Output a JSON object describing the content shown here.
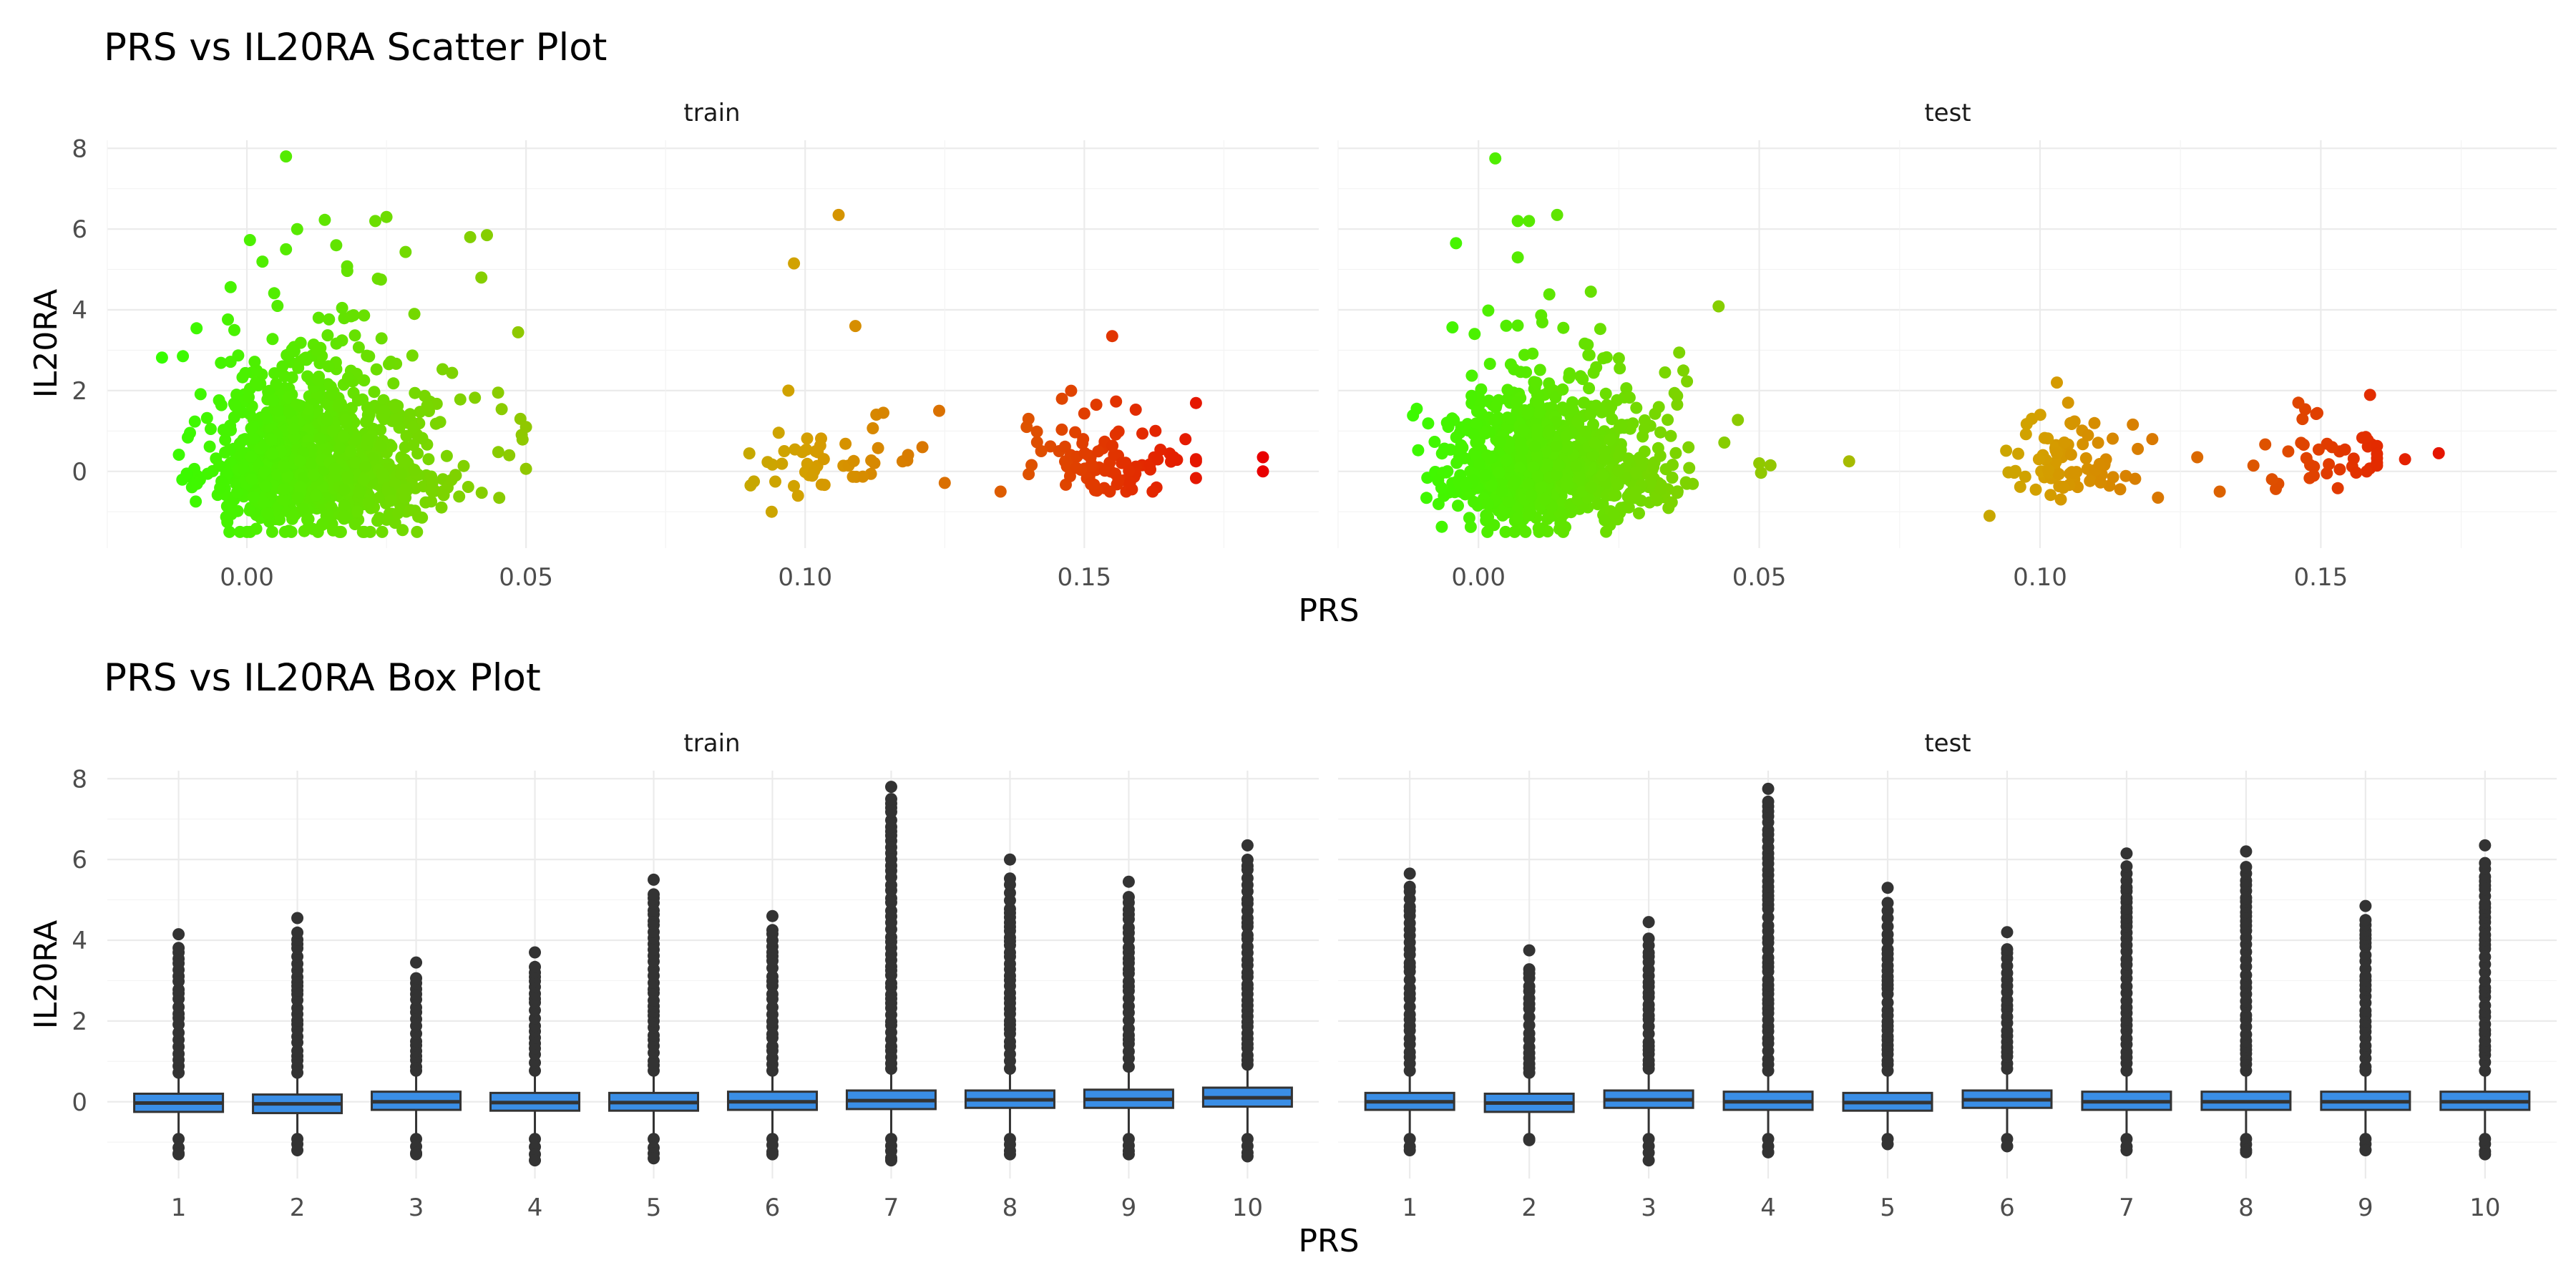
{
  "chart_data": [
    {
      "type": "scatter",
      "title": "PRS vs IL20RA Scatter Plot",
      "xlabel": "PRS",
      "ylabel": "IL20RA",
      "facets": [
        "train",
        "test"
      ],
      "color_scale": {
        "low": "#33ff00",
        "mid": "#d4a000",
        "high": "#e80000"
      },
      "grid": true,
      "panels": [
        {
          "facet": "train",
          "xlim": [
            -0.025,
            0.192
          ],
          "ylim": [
            -1.9,
            8.2
          ],
          "x_ticks": [
            0.0,
            0.05,
            0.1,
            0.15
          ],
          "x_tick_labels": [
            "0.00",
            "0.05",
            "0.10",
            "0.15"
          ],
          "y_ticks": [
            0,
            2,
            4,
            6,
            8
          ],
          "y_tick_labels": [
            "0",
            "2",
            "4",
            "6",
            "8"
          ],
          "clusters": [
            {
              "x_mean": 0.008,
              "x_sd": 0.009,
              "y_mean": 0.15,
              "y_sd": 0.75,
              "x_min": -0.018,
              "x_max": 0.05,
              "y_min": -1.5,
              "count": 1100
            },
            {
              "x_mean": 0.1,
              "x_sd": 0.007,
              "y_mean": 0.0,
              "y_sd": 0.35,
              "x_min": 0.09,
              "x_max": 0.125,
              "y_min": -1.0,
              "count": 45
            },
            {
              "x_mean": 0.15,
              "x_sd": 0.007,
              "y_mean": 0.25,
              "y_sd": 0.4,
              "x_min": 0.135,
              "x_max": 0.17,
              "y_min": -0.5,
              "count": 90
            }
          ],
          "points": [
            {
              "x": 0.007,
              "y": 7.8
            },
            {
              "x": 0.009,
              "y": 6.0
            },
            {
              "x": 0.025,
              "y": 6.3
            },
            {
              "x": 0.023,
              "y": 6.2
            },
            {
              "x": 0.04,
              "y": 5.8
            },
            {
              "x": 0.043,
              "y": 5.85
            },
            {
              "x": 0.016,
              "y": 5.6
            },
            {
              "x": 0.007,
              "y": 5.5
            },
            {
              "x": 0.042,
              "y": 4.8
            },
            {
              "x": 0.03,
              "y": 3.9
            },
            {
              "x": 0.045,
              "y": 1.95
            },
            {
              "x": 0.049,
              "y": 1.3
            },
            {
              "x": 0.05,
              "y": 1.1
            },
            {
              "x": 0.047,
              "y": 0.4
            },
            {
              "x": 0.106,
              "y": 6.35
            },
            {
              "x": 0.098,
              "y": 5.15
            },
            {
              "x": 0.109,
              "y": 3.6
            },
            {
              "x": 0.097,
              "y": 2.0
            },
            {
              "x": 0.124,
              "y": 1.5
            },
            {
              "x": 0.114,
              "y": 1.45
            },
            {
              "x": 0.121,
              "y": 0.6
            },
            {
              "x": 0.094,
              "y": -1.0
            },
            {
              "x": 0.155,
              "y": 3.35
            },
            {
              "x": 0.146,
              "y": 1.8
            },
            {
              "x": 0.14,
              "y": 1.3
            },
            {
              "x": 0.166,
              "y": 0.35
            },
            {
              "x": 0.182,
              "y": 0.35
            },
            {
              "x": 0.182,
              "y": 0.0
            }
          ]
        },
        {
          "facet": "test",
          "xlim": [
            -0.025,
            0.192
          ],
          "ylim": [
            -1.9,
            8.2
          ],
          "x_ticks": [
            0.0,
            0.05,
            0.1,
            0.15
          ],
          "x_tick_labels": [
            "0.00",
            "0.05",
            "0.10",
            "0.15"
          ],
          "y_ticks": [
            0,
            2,
            4,
            6,
            8
          ],
          "y_tick_labels": [
            "0",
            "2",
            "4",
            "6",
            "8"
          ],
          "clusters": [
            {
              "x_mean": 0.008,
              "x_sd": 0.009,
              "y_mean": 0.1,
              "y_sd": 0.65,
              "x_min": -0.015,
              "x_max": 0.055,
              "y_min": -1.5,
              "count": 900
            },
            {
              "x_mean": 0.103,
              "x_sd": 0.005,
              "y_mean": 0.0,
              "y_sd": 0.3,
              "x_min": 0.09,
              "x_max": 0.121,
              "y_min": -1.1,
              "count": 80
            },
            {
              "x_mean": 0.148,
              "x_sd": 0.006,
              "y_mean": 0.2,
              "y_sd": 0.3,
              "x_min": 0.138,
              "x_max": 0.16,
              "y_min": -0.5,
              "count": 40
            }
          ],
          "points": [
            {
              "x": 0.003,
              "y": 7.75
            },
            {
              "x": 0.014,
              "y": 6.35
            },
            {
              "x": 0.009,
              "y": 6.2
            },
            {
              "x": 0.007,
              "y": 6.2
            },
            {
              "x": -0.004,
              "y": 5.65
            },
            {
              "x": 0.007,
              "y": 5.3
            },
            {
              "x": 0.02,
              "y": 4.45
            },
            {
              "x": 0.025,
              "y": 2.8
            },
            {
              "x": -0.011,
              "y": 1.55
            },
            {
              "x": 0.05,
              "y": 0.2
            },
            {
              "x": 0.052,
              "y": 0.15
            },
            {
              "x": 0.066,
              "y": 0.25
            },
            {
              "x": 0.103,
              "y": 2.2
            },
            {
              "x": 0.105,
              "y": 1.7
            },
            {
              "x": 0.12,
              "y": 0.8
            },
            {
              "x": 0.128,
              "y": 0.35
            },
            {
              "x": 0.132,
              "y": -0.5
            },
            {
              "x": 0.091,
              "y": -1.1
            },
            {
              "x": 0.146,
              "y": 1.7
            },
            {
              "x": 0.158,
              "y": 0.85
            },
            {
              "x": 0.165,
              "y": 0.3
            },
            {
              "x": 0.171,
              "y": 0.45
            },
            {
              "x": 0.152,
              "y": 0.6
            }
          ]
        }
      ]
    },
    {
      "type": "box",
      "title": "PRS vs IL20RA Box Plot",
      "xlabel": "PRS",
      "ylabel": "IL20RA",
      "facets": [
        "train",
        "test"
      ],
      "box_fill": "#3a8ee6",
      "grid": true,
      "categories": [
        "1",
        "2",
        "3",
        "4",
        "5",
        "6",
        "7",
        "8",
        "9",
        "10"
      ],
      "panels": [
        {
          "facet": "train",
          "ylim": [
            -1.9,
            8.2
          ],
          "y_ticks": [
            0,
            2,
            4,
            6,
            8
          ],
          "y_tick_labels": [
            "0",
            "2",
            "4",
            "6",
            "8"
          ],
          "boxes": [
            {
              "q1": -0.25,
              "median": -0.03,
              "q3": 0.2,
              "lower": -0.8,
              "upper": 0.6,
              "outlier_max": 4.15,
              "outlier_min": -1.3
            },
            {
              "q1": -0.28,
              "median": -0.05,
              "q3": 0.18,
              "lower": -0.8,
              "upper": 0.6,
              "outlier_max": 4.55,
              "outlier_min": -1.2
            },
            {
              "q1": -0.2,
              "median": 0.0,
              "q3": 0.25,
              "lower": -0.8,
              "upper": 0.65,
              "outlier_max": 3.45,
              "outlier_min": -1.3
            },
            {
              "q1": -0.22,
              "median": -0.02,
              "q3": 0.22,
              "lower": -0.8,
              "upper": 0.65,
              "outlier_max": 3.7,
              "outlier_min": -1.45
            },
            {
              "q1": -0.22,
              "median": -0.02,
              "q3": 0.22,
              "lower": -0.8,
              "upper": 0.65,
              "outlier_max": 5.5,
              "outlier_min": -1.4
            },
            {
              "q1": -0.2,
              "median": 0.0,
              "q3": 0.25,
              "lower": -0.8,
              "upper": 0.65,
              "outlier_max": 4.6,
              "outlier_min": -1.3
            },
            {
              "q1": -0.18,
              "median": 0.03,
              "q3": 0.28,
              "lower": -0.8,
              "upper": 0.7,
              "outlier_max": 7.8,
              "outlier_min": -1.45
            },
            {
              "q1": -0.15,
              "median": 0.05,
              "q3": 0.28,
              "lower": -0.8,
              "upper": 0.7,
              "outlier_max": 6.0,
              "outlier_min": -1.3
            },
            {
              "q1": -0.15,
              "median": 0.06,
              "q3": 0.3,
              "lower": -0.8,
              "upper": 0.75,
              "outlier_max": 5.45,
              "outlier_min": -1.3
            },
            {
              "q1": -0.12,
              "median": 0.1,
              "q3": 0.35,
              "lower": -0.8,
              "upper": 0.8,
              "outlier_max": 6.35,
              "outlier_min": -1.35
            }
          ]
        },
        {
          "facet": "test",
          "ylim": [
            -1.9,
            8.2
          ],
          "y_ticks": [
            0,
            2,
            4,
            6,
            8
          ],
          "y_tick_labels": [
            "0",
            "2",
            "4",
            "6",
            "8"
          ],
          "boxes": [
            {
              "q1": -0.2,
              "median": 0.0,
              "q3": 0.22,
              "lower": -0.8,
              "upper": 0.65,
              "outlier_max": 5.65,
              "outlier_min": -1.2
            },
            {
              "q1": -0.25,
              "median": -0.03,
              "q3": 0.2,
              "lower": -0.8,
              "upper": 0.6,
              "outlier_max": 3.75,
              "outlier_min": -0.95
            },
            {
              "q1": -0.15,
              "median": 0.05,
              "q3": 0.28,
              "lower": -0.8,
              "upper": 0.7,
              "outlier_max": 4.45,
              "outlier_min": -1.45
            },
            {
              "q1": -0.2,
              "median": 0.0,
              "q3": 0.25,
              "lower": -0.8,
              "upper": 0.65,
              "outlier_max": 7.75,
              "outlier_min": -1.25
            },
            {
              "q1": -0.22,
              "median": -0.02,
              "q3": 0.22,
              "lower": -0.8,
              "upper": 0.65,
              "outlier_max": 5.3,
              "outlier_min": -1.05
            },
            {
              "q1": -0.15,
              "median": 0.05,
              "q3": 0.28,
              "lower": -0.8,
              "upper": 0.7,
              "outlier_max": 4.2,
              "outlier_min": -1.1
            },
            {
              "q1": -0.2,
              "median": 0.0,
              "q3": 0.25,
              "lower": -0.8,
              "upper": 0.65,
              "outlier_max": 6.15,
              "outlier_min": -1.2
            },
            {
              "q1": -0.2,
              "median": 0.0,
              "q3": 0.25,
              "lower": -0.8,
              "upper": 0.65,
              "outlier_max": 6.2,
              "outlier_min": -1.25
            },
            {
              "q1": -0.2,
              "median": 0.0,
              "q3": 0.25,
              "lower": -0.8,
              "upper": 0.65,
              "outlier_max": 4.85,
              "outlier_min": -1.2
            },
            {
              "q1": -0.2,
              "median": 0.0,
              "q3": 0.25,
              "lower": -0.8,
              "upper": 0.65,
              "outlier_max": 6.35,
              "outlier_min": -1.3
            }
          ]
        }
      ]
    }
  ]
}
